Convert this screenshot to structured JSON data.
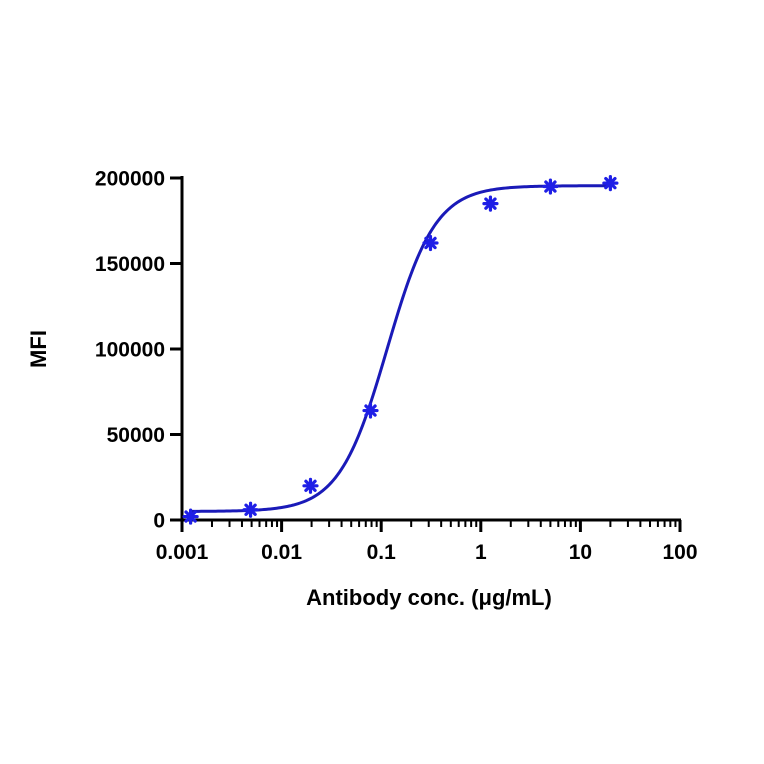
{
  "chart_data": {
    "type": "scatter",
    "title": "",
    "xlabel": "Antibody conc. (μg/mL)",
    "ylabel": "MFI",
    "x_scale": "log",
    "xlim": [
      0.001,
      100
    ],
    "ylim": [
      0,
      200000
    ],
    "x_ticks": [
      0.001,
      0.01,
      0.1,
      1,
      10,
      100
    ],
    "x_tick_labels": [
      "0.001",
      "0.01",
      "0.1",
      "1",
      "10",
      "100"
    ],
    "y_ticks": [
      0,
      50000,
      100000,
      150000,
      200000
    ],
    "y_tick_labels": [
      "0",
      "50000",
      "100000",
      "150000",
      "200000"
    ],
    "grid": false,
    "series": [
      {
        "marker": "asterisk",
        "color": "#1f1fe6",
        "x": [
          0.00122,
          0.00488,
          0.0195,
          0.0781,
          0.3125,
          1.25,
          5,
          20
        ],
        "y": [
          2000,
          6000,
          20000,
          64000,
          162000,
          185000,
          195000,
          197000
        ]
      }
    ],
    "fit": {
      "type": "4PL",
      "color": "#1a1ab8",
      "bottom": 5000,
      "top": 195500,
      "ec50": 0.115,
      "hill": 1.8
    }
  }
}
